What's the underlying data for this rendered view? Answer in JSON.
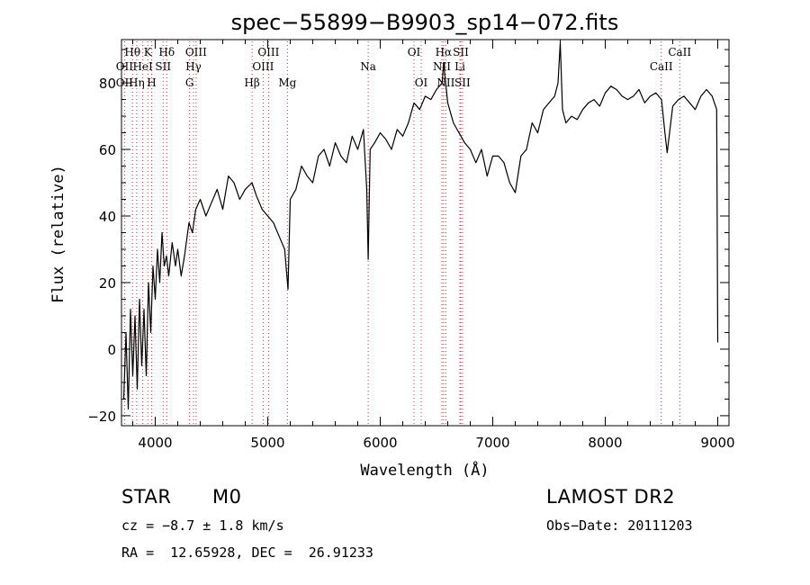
{
  "chart_data": {
    "type": "line",
    "title": "spec−55899−B9903_sp14−072.fits",
    "xlabel": "Wavelength (Å)",
    "ylabel": "Flux (relative)",
    "xlim": [
      3700,
      9100
    ],
    "ylim": [
      -23,
      93
    ],
    "x_ticks": [
      4000,
      5000,
      6000,
      7000,
      8000,
      9000
    ],
    "y_ticks": [
      -20,
      0,
      20,
      40,
      60,
      80
    ],
    "grid": false,
    "line_color": "#000000",
    "marker_color": "#cc3333",
    "series": [
      {
        "x": [
          3720,
          3740,
          3760,
          3780,
          3800,
          3820,
          3840,
          3860,
          3880,
          3900,
          3920,
          3940,
          3960,
          3980,
          4000,
          4020,
          4040,
          4060,
          4080,
          4100,
          4120,
          4150,
          4180,
          4200,
          4230,
          4260,
          4300,
          4330,
          4360,
          4400,
          4450,
          4500,
          4550,
          4600,
          4650,
          4700,
          4750,
          4800,
          4860,
          4900,
          4950,
          5000,
          5050,
          5100,
          5150,
          5180,
          5200,
          5250,
          5300,
          5350,
          5400,
          5450,
          5500,
          5550,
          5600,
          5650,
          5700,
          5750,
          5800,
          5850,
          5880,
          5893,
          5910,
          5950,
          6000,
          6050,
          6100,
          6150,
          6200,
          6250,
          6300,
          6350,
          6400,
          6450,
          6500,
          6550,
          6563,
          6600,
          6650,
          6700,
          6750,
          6800,
          6850,
          6900,
          6950,
          7000,
          7050,
          7100,
          7150,
          7200,
          7250,
          7300,
          7350,
          7400,
          7450,
          7500,
          7550,
          7580,
          7600,
          7620,
          7650,
          7700,
          7750,
          7800,
          7850,
          7900,
          7950,
          8000,
          8050,
          8100,
          8150,
          8200,
          8250,
          8300,
          8350,
          8400,
          8450,
          8500,
          8530,
          8550,
          8600,
          8650,
          8700,
          8750,
          8800,
          8850,
          8900,
          8950,
          8990,
          9000
        ],
        "y": [
          -15,
          5,
          -18,
          12,
          -8,
          10,
          -12,
          15,
          -5,
          12,
          -8,
          20,
          5,
          25,
          15,
          30,
          20,
          35,
          25,
          28,
          22,
          32,
          25,
          30,
          22,
          28,
          38,
          35,
          42,
          45,
          40,
          44,
          48,
          42,
          52,
          50,
          45,
          48,
          50,
          46,
          42,
          40,
          38,
          34,
          30,
          18,
          45,
          48,
          55,
          52,
          50,
          58,
          60,
          55,
          62,
          58,
          56,
          64,
          60,
          66,
          48,
          27,
          60,
          62,
          65,
          63,
          60,
          66,
          64,
          68,
          74,
          72,
          76,
          75,
          78,
          80,
          86,
          74,
          68,
          65,
          62,
          60,
          56,
          60,
          52,
          58,
          58,
          56,
          50,
          47,
          58,
          60,
          68,
          65,
          72,
          74,
          76,
          80,
          92,
          72,
          68,
          70,
          69,
          72,
          74,
          75,
          73,
          77,
          79,
          78,
          76,
          75,
          76,
          78,
          74,
          76,
          77,
          75,
          65,
          59,
          73,
          75,
          76,
          74,
          72,
          76,
          78,
          76,
          72,
          2
        ]
      }
    ],
    "line_markers": {
      "Hθ": 3798,
      "OII": 3727,
      "K": 3934,
      "HeI": 3889,
      "Hη": 3835,
      "Hδ": 4102,
      "SII": 4070,
      "H": 3968,
      "OIII_a": 4363,
      "Hγ": 4340,
      "G": 4305,
      "OIII_b": 5007,
      "OIII_c": 4959,
      "Hβ": 4861,
      "Mg": 5175,
      "Na": 5893,
      "OI_a": 6300,
      "OI_b": 6364,
      "Hα": 6563,
      "NII_a": 6548,
      "NII_b": 6583,
      "SII_a": 6716,
      "SII_b": 6731,
      "Li": 6708,
      "CaII_a": 8498,
      "CaII_b": 8662
    },
    "line_labels": [
      {
        "text": "Hθ",
        "x": 3798,
        "row": 1
      },
      {
        "text": "K",
        "x": 3934,
        "row": 1
      },
      {
        "text": "Hδ",
        "x": 4102,
        "row": 1
      },
      {
        "text": "OIII",
        "x": 4363,
        "row": 1
      },
      {
        "text": "OIII",
        "x": 5007,
        "row": 1
      },
      {
        "text": "OI",
        "x": 6300,
        "row": 1
      },
      {
        "text": "Hα",
        "x": 6563,
        "row": 1
      },
      {
        "text": "SII",
        "x": 6716,
        "row": 1
      },
      {
        "text": "CaII",
        "x": 8662,
        "row": 1
      },
      {
        "text": "OII",
        "x": 3727,
        "row": 2
      },
      {
        "text": "HeI",
        "x": 3889,
        "row": 2
      },
      {
        "text": "SII",
        "x": 4070,
        "row": 2
      },
      {
        "text": "Hγ",
        "x": 4340,
        "row": 2
      },
      {
        "text": "OIII",
        "x": 4959,
        "row": 2
      },
      {
        "text": "Na",
        "x": 5893,
        "row": 2
      },
      {
        "text": "NII",
        "x": 6548,
        "row": 2
      },
      {
        "text": "Li",
        "x": 6708,
        "row": 2
      },
      {
        "text": "CaII",
        "x": 8498,
        "row": 2
      },
      {
        "text": "OII",
        "x": 3727,
        "row": 3
      },
      {
        "text": "Hη",
        "x": 3835,
        "row": 3
      },
      {
        "text": "H",
        "x": 3968,
        "row": 3
      },
      {
        "text": "G",
        "x": 4305,
        "row": 3
      },
      {
        "text": "Hβ",
        "x": 4861,
        "row": 3
      },
      {
        "text": "Mg",
        "x": 5175,
        "row": 3
      },
      {
        "text": "OI",
        "x": 6364,
        "row": 3
      },
      {
        "text": "NII",
        "x": 6583,
        "row": 3
      },
      {
        "text": "SII",
        "x": 6731,
        "row": 3
      }
    ]
  },
  "info": {
    "object_class": "STAR",
    "subclass": "M0",
    "survey": "LAMOST DR2",
    "redshift": "cz = −8.7 ± 1.8 km/s",
    "obs_date": "Obs−Date: 20111203",
    "coords": "RA =  12.65928, DEC =  26.91233"
  }
}
